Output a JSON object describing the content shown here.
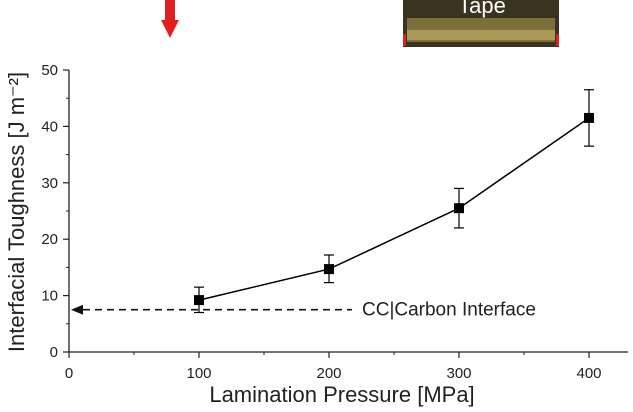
{
  "chart_data": {
    "type": "line",
    "title": "",
    "xlabel": "Lamination Pressure [MPa]",
    "ylabel": "Interfacial Toughness [J m⁻²]",
    "xlim": [
      0,
      430
    ],
    "ylim": [
      0,
      50
    ],
    "xticks": [
      0,
      100,
      200,
      300,
      400
    ],
    "yticks": [
      0,
      10,
      20,
      30,
      40,
      50
    ],
    "grid": false,
    "series": [
      {
        "x": [
          100,
          200,
          300,
          400
        ],
        "y": [
          9.2,
          14.7,
          25.5,
          41.5
        ],
        "err_low": [
          7.0,
          12.3,
          22.0,
          36.5
        ],
        "err_high": [
          11.5,
          17.2,
          29.0,
          46.5
        ],
        "marker": "square",
        "color": "#000000"
      }
    ],
    "reference_line": {
      "y": 7.5,
      "style": "dashed",
      "direction": "left-arrow",
      "label": "CC|Carbon Interface"
    }
  },
  "overlay": {
    "photo_label": "Tape",
    "arrow_color": "#e02020"
  }
}
